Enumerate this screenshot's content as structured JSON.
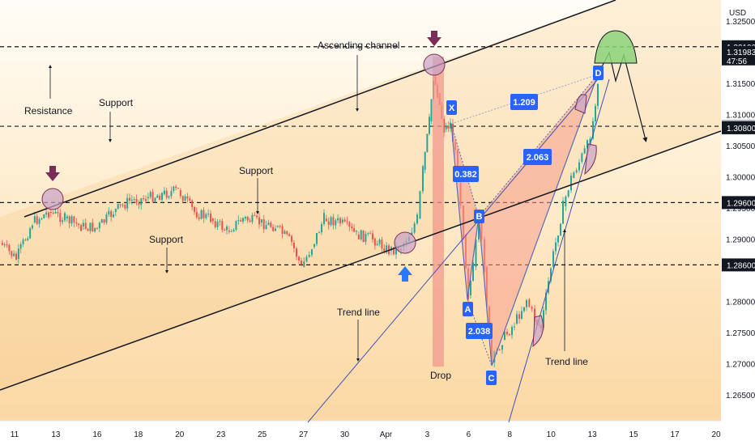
{
  "currency": "USD",
  "chart_data": {
    "type": "line",
    "title": "",
    "price_axis": {
      "ticks": [
        "1.32500",
        "1.31500",
        "1.31000",
        "1.30500",
        "1.30000",
        "1.29500",
        "1.29000",
        "1.28000",
        "1.27500",
        "1.27000",
        "1.26500"
      ],
      "tick_values": [
        1.325,
        1.315,
        1.31,
        1.305,
        1.3,
        1.295,
        1.29,
        1.28,
        1.275,
        1.27,
        1.265
      ],
      "ylim": [
        1.261,
        1.3285
      ]
    },
    "price_tags": [
      {
        "label": "1.32100",
        "value": 1.321,
        "style": "dark"
      },
      {
        "label": "1.30824",
        "value": 1.30824,
        "style": "gray"
      },
      {
        "label": "1.30800",
        "value": 1.308,
        "style": "dark"
      },
      {
        "label": "1.29600",
        "value": 1.296,
        "style": "dark"
      },
      {
        "label": "1.28600",
        "value": 1.286,
        "style": "dark"
      }
    ],
    "current_price": {
      "label": "1.31983",
      "countdown": "47:56",
      "value": 1.31983
    },
    "time_axis": {
      "labels": [
        "11",
        "13",
        "16",
        "18",
        "20",
        "23",
        "25",
        "27",
        "30",
        "Apr",
        "3",
        "6",
        "8",
        "10",
        "13",
        "15",
        "17",
        "20"
      ],
      "x_index": [
        0,
        2,
        4,
        6,
        8,
        10,
        12,
        14,
        16,
        18,
        20,
        22,
        24,
        26,
        28,
        30,
        32,
        34
      ]
    },
    "horizontal_levels": [
      1.321,
      1.30824,
      1.296,
      1.286
    ],
    "harmonic_points": [
      {
        "label": "X",
        "price": 1.3113
      },
      {
        "label": "A",
        "price": 1.2815
      },
      {
        "label": "B",
        "price": 1.2955
      },
      {
        "label": "C",
        "price": 1.272
      },
      {
        "label": "D",
        "price": 1.3192
      }
    ],
    "ratios": [
      "0.382",
      "2.038",
      "1.209",
      "2.063"
    ]
  },
  "annotations": {
    "resistance": "Resistance",
    "support_1": "Support",
    "support_2": "Support",
    "support_3": "Support",
    "ascending_channel": "Ascending channel",
    "trend_line_1": "Trend line",
    "trend_line_2": "Trend line",
    "drop": "Drop"
  },
  "colors": {
    "candle_up": "#26a69a",
    "candle_down": "#ef5350",
    "pattern_fill": "#f5a08f",
    "drop_bar": "#f19a8c",
    "label_blue": "#2962ff",
    "arrow_purple": "#7b2d5a",
    "arrow_blue": "#2979ff",
    "green_cap": "#8bd47a"
  }
}
